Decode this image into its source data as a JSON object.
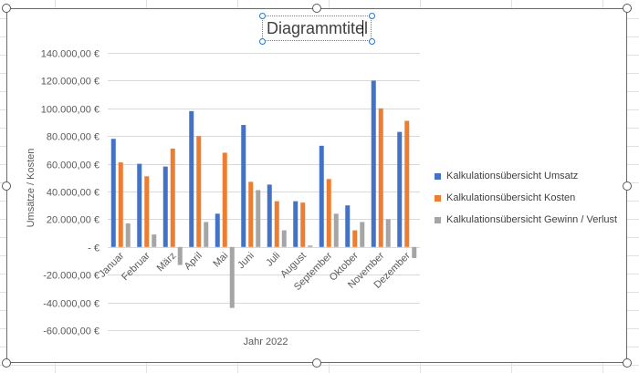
{
  "chart_data": {
    "type": "bar",
    "title": "Diagrammtitel",
    "xlabel": "Jahr 2022",
    "ylabel": "Umsätze / Kosten",
    "ylim": [
      -60000,
      140000
    ],
    "ytick_values": [
      140000,
      120000,
      100000,
      80000,
      60000,
      40000,
      20000,
      0,
      -20000,
      -40000,
      -60000
    ],
    "ytick_labels": [
      "140.000,00 €",
      "120.000,00 €",
      "100.000,00 €",
      "80.000,00 €",
      "60.000,00 €",
      "40.000,00 €",
      "20.000,00 €",
      "-   €",
      "-20.000,00 €",
      "-40.000,00 €",
      "-60.000,00 €"
    ],
    "grid": true,
    "legend_position": "right",
    "categories": [
      "Januar",
      "Februar",
      "März",
      "April",
      "Mai",
      "Juni",
      "Juli",
      "August",
      "September",
      "Oktober",
      "November",
      "Dezember"
    ],
    "series": [
      {
        "name": "Kalkulationsübersicht Umsatz",
        "color": "#4472c4",
        "values": [
          78000,
          60000,
          58000,
          98000,
          24000,
          88000,
          45000,
          33000,
          73000,
          30000,
          120000,
          83000
        ]
      },
      {
        "name": "Kalkulationsübersicht Kosten",
        "color": "#ed7d31",
        "values": [
          61000,
          51000,
          71000,
          80000,
          68000,
          47000,
          33000,
          32000,
          49000,
          12000,
          100000,
          91000
        ]
      },
      {
        "name": "Kalkulationsübersicht Gewinn / Verlust",
        "color": "#a5a5a5",
        "values": [
          17000,
          9000,
          -13000,
          18000,
          -44000,
          41000,
          12000,
          1000,
          24000,
          18000,
          20000,
          -8000
        ]
      }
    ]
  }
}
